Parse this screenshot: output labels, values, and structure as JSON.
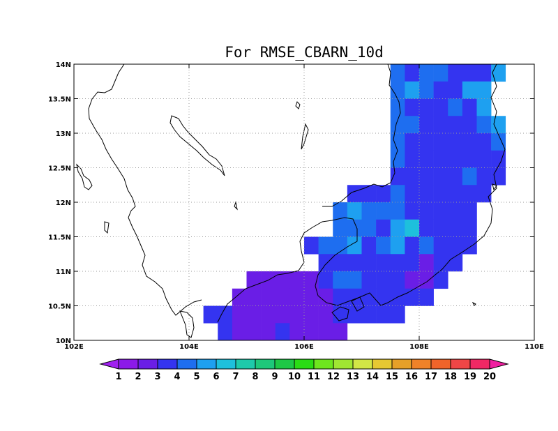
{
  "chart_data": {
    "type": "heatmap",
    "title": "For RMSE_CBARN_10d",
    "x_ticks": [
      "102E",
      "104E",
      "106E",
      "108E",
      "110E"
    ],
    "y_ticks": [
      "10N",
      "10.5N",
      "11N",
      "11.5N",
      "12N",
      "12.5N",
      "13N",
      "13.5N",
      "14N"
    ],
    "xlim": [
      102,
      110
    ],
    "ylim": [
      10,
      14
    ],
    "grid": true,
    "cell_size_deg": 0.25,
    "colorbar": {
      "labels": [
        "1",
        "2",
        "3",
        "4",
        "5",
        "6",
        "7",
        "8",
        "9",
        "10",
        "11",
        "12",
        "13",
        "14",
        "15",
        "16",
        "17",
        "18",
        "19",
        "20"
      ],
      "colors": [
        "#a020f0",
        "#8c1ae8",
        "#6a1ee6",
        "#3434f0",
        "#1e6ef0",
        "#1ea0f0",
        "#1ec0dc",
        "#1ecaaa",
        "#1ec87a",
        "#1ec846",
        "#2adc14",
        "#6ee61e",
        "#a0e632",
        "#d2e646",
        "#e6c832",
        "#e6a028",
        "#f08228",
        "#f0642a",
        "#f04646",
        "#f02864",
        "#f01ea0"
      ]
    },
    "data": {
      "rows_lat": [
        13.875,
        13.625,
        13.375,
        13.125,
        12.875,
        12.625,
        12.375,
        12.125,
        11.875,
        11.625,
        11.375,
        11.125,
        10.875,
        10.625,
        10.375,
        10.125
      ],
      "columns_lon": [
        104.375,
        104.625,
        104.875,
        105.125,
        105.375,
        105.625,
        105.875,
        106.125,
        106.375,
        106.625,
        106.875,
        107.125,
        107.375,
        107.625,
        107.875,
        108.125,
        108.375,
        108.625,
        108.875,
        109.125,
        109.375
      ],
      "values": [
        [
          null,
          null,
          null,
          null,
          null,
          null,
          null,
          null,
          null,
          null,
          null,
          null,
          null,
          4,
          3,
          4,
          4,
          3,
          3,
          3,
          5
        ],
        [
          null,
          null,
          null,
          null,
          null,
          null,
          null,
          null,
          null,
          null,
          null,
          null,
          null,
          4,
          5,
          4,
          3,
          3,
          5,
          5,
          null
        ],
        [
          null,
          null,
          null,
          null,
          null,
          null,
          null,
          null,
          null,
          null,
          null,
          null,
          null,
          4,
          3,
          3,
          3,
          4,
          3,
          5,
          null
        ],
        [
          null,
          null,
          null,
          null,
          null,
          null,
          null,
          null,
          null,
          null,
          null,
          null,
          null,
          4,
          4,
          3,
          3,
          3,
          3,
          4,
          5
        ],
        [
          null,
          null,
          null,
          null,
          null,
          null,
          null,
          null,
          null,
          null,
          null,
          null,
          null,
          4,
          3,
          3,
          3,
          3,
          3,
          3,
          4
        ],
        [
          null,
          null,
          null,
          null,
          null,
          null,
          null,
          null,
          null,
          null,
          null,
          null,
          null,
          4,
          3,
          3,
          3,
          3,
          3,
          3,
          3
        ],
        [
          null,
          null,
          null,
          null,
          null,
          null,
          null,
          null,
          null,
          null,
          null,
          null,
          null,
          3,
          3,
          3,
          3,
          3,
          4,
          3,
          3
        ],
        [
          null,
          null,
          null,
          null,
          null,
          null,
          null,
          null,
          null,
          null,
          3,
          3,
          3,
          4,
          3,
          3,
          3,
          3,
          3,
          3,
          null
        ],
        [
          null,
          null,
          null,
          null,
          null,
          null,
          null,
          null,
          null,
          4,
          5,
          4,
          4,
          4,
          3,
          3,
          3,
          3,
          3,
          null,
          null
        ],
        [
          null,
          null,
          null,
          null,
          null,
          null,
          null,
          null,
          null,
          4,
          4,
          4,
          3,
          5,
          6,
          3,
          3,
          3,
          3,
          null,
          null
        ],
        [
          null,
          null,
          null,
          null,
          null,
          null,
          null,
          3,
          4,
          4,
          5,
          3,
          4,
          5,
          3,
          4,
          3,
          3,
          3,
          null,
          null
        ],
        [
          null,
          null,
          null,
          null,
          null,
          null,
          null,
          null,
          3,
          3,
          3,
          3,
          3,
          3,
          3,
          2,
          3,
          3,
          null,
          null,
          null
        ],
        [
          null,
          null,
          null,
          2,
          2,
          2,
          2,
          2,
          3,
          4,
          4,
          3,
          3,
          3,
          2,
          2,
          3,
          null,
          null,
          null,
          null
        ],
        [
          null,
          null,
          2,
          2,
          2,
          2,
          2,
          2,
          2,
          3,
          3,
          3,
          3,
          3,
          3,
          3,
          null,
          null,
          null,
          null,
          null
        ],
        [
          3,
          3,
          2,
          2,
          2,
          2,
          2,
          2,
          2,
          3,
          3,
          3,
          3,
          3,
          null,
          null,
          null,
          null,
          null,
          null,
          null
        ],
        [
          null,
          3,
          2,
          2,
          2,
          3,
          2,
          2,
          2,
          2,
          null,
          null,
          null,
          null,
          null,
          null,
          null,
          null,
          null,
          null,
          null
        ]
      ]
    }
  }
}
